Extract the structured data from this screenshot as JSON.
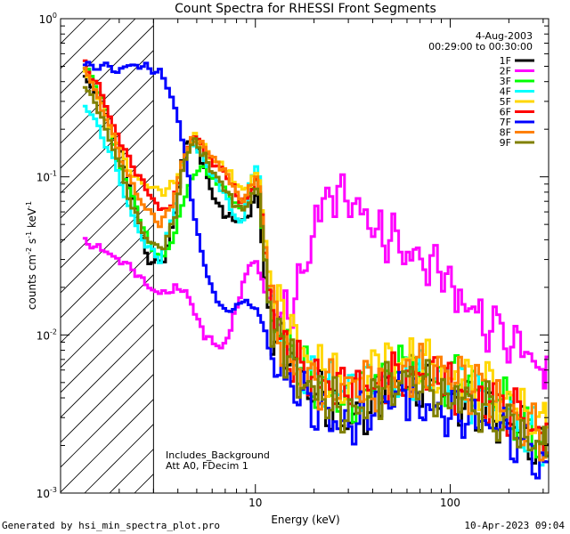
{
  "chart_data": {
    "type": "line",
    "title": "Count Spectra for RHESSI Front Segments",
    "xlabel": "Energy (keV)",
    "ylabel": "counts cm",
    "ylabel_parts": {
      "base": "counts cm",
      "sup1": "-2",
      "mid": " s",
      "sup2": "-1",
      "mid2": " keV",
      "sup3": "-1"
    },
    "xscale": "log",
    "yscale": "log",
    "xlim": [
      1.0,
      320
    ],
    "ylim": [
      0.001,
      1.0
    ],
    "x_ticks": [
      {
        "value": 10,
        "label": "10"
      },
      {
        "value": 100,
        "label": "100"
      }
    ],
    "y_ticks": [
      {
        "value": 1.0,
        "base": "10",
        "exp": "0"
      },
      {
        "value": 0.1,
        "base": "10",
        "exp": "-1"
      },
      {
        "value": 0.01,
        "base": "10",
        "exp": "-2"
      },
      {
        "value": 0.001,
        "base": "10",
        "exp": "-3"
      }
    ],
    "date": "4-Aug-2003",
    "time_range": "00:29:00 to 00:30:00",
    "annotations": [
      "Includes_Background",
      "Att A0, FDecim 1"
    ],
    "shaded_region_xmax": 3,
    "energies": [
      1.3,
      1.6,
      2.0,
      2.4,
      2.8,
      3.3,
      3.8,
      4.3,
      4.8,
      5.4,
      6.0,
      6.8,
      7.6,
      8.5,
      9.5,
      10.3,
      11.0,
      12.0,
      14.0,
      17.0,
      21.0,
      25.0,
      30.0,
      36.0,
      43.0,
      52.0,
      62.0,
      75.0,
      90.0,
      110.0,
      140.0,
      180.0,
      230.0,
      300.0
    ],
    "series": [
      {
        "name": "1F",
        "color": "#000000",
        "values": [
          0.45,
          0.3,
          0.15,
          0.07,
          0.03,
          0.028,
          0.05,
          0.15,
          0.18,
          0.12,
          0.08,
          0.06,
          0.055,
          0.05,
          0.06,
          0.08,
          0.03,
          0.012,
          0.008,
          0.005,
          0.004,
          0.0035,
          0.0032,
          0.0035,
          0.004,
          0.0045,
          0.005,
          0.0048,
          0.0045,
          0.004,
          0.0035,
          0.003,
          0.0025,
          0.0018
        ]
      },
      {
        "name": "2F",
        "color": "#ff00ff",
        "values": [
          0.04,
          0.035,
          0.03,
          0.025,
          0.02,
          0.018,
          0.02,
          0.02,
          0.015,
          0.01,
          0.009,
          0.008,
          0.012,
          0.02,
          0.03,
          0.028,
          0.02,
          0.016,
          0.014,
          0.02,
          0.06,
          0.075,
          0.065,
          0.055,
          0.047,
          0.04,
          0.034,
          0.028,
          0.023,
          0.018,
          0.013,
          0.01,
          0.008,
          0.006
        ]
      },
      {
        "name": "3F",
        "color": "#00ff00",
        "values": [
          0.5,
          0.35,
          0.12,
          0.07,
          0.04,
          0.03,
          0.04,
          0.07,
          0.1,
          0.12,
          0.1,
          0.09,
          0.07,
          0.06,
          0.08,
          0.1,
          0.04,
          0.013,
          0.009,
          0.006,
          0.005,
          0.0045,
          0.004,
          0.0045,
          0.005,
          0.0055,
          0.006,
          0.0058,
          0.0055,
          0.005,
          0.0045,
          0.0038,
          0.003,
          0.002
        ]
      },
      {
        "name": "4F",
        "color": "#00ffff",
        "values": [
          0.3,
          0.2,
          0.1,
          0.05,
          0.035,
          0.03,
          0.06,
          0.14,
          0.17,
          0.13,
          0.1,
          0.08,
          0.06,
          0.05,
          0.1,
          0.13,
          0.045,
          0.014,
          0.009,
          0.006,
          0.005,
          0.0045,
          0.0042,
          0.0045,
          0.005,
          0.0052,
          0.0055,
          0.0052,
          0.005,
          0.0045,
          0.004,
          0.0035,
          0.0028,
          0.002
        ]
      },
      {
        "name": "5F",
        "color": "#ffd700",
        "values": [
          0.5,
          0.3,
          0.15,
          0.1,
          0.09,
          0.08,
          0.09,
          0.12,
          0.18,
          0.16,
          0.13,
          0.12,
          0.1,
          0.08,
          0.09,
          0.11,
          0.05,
          0.02,
          0.012,
          0.008,
          0.006,
          0.0055,
          0.005,
          0.0055,
          0.006,
          0.0065,
          0.0068,
          0.0065,
          0.006,
          0.0055,
          0.005,
          0.0042,
          0.0035,
          0.0025
        ]
      },
      {
        "name": "6F",
        "color": "#ff0000",
        "values": [
          0.55,
          0.35,
          0.17,
          0.11,
          0.08,
          0.06,
          0.07,
          0.13,
          0.19,
          0.15,
          0.12,
          0.11,
          0.09,
          0.07,
          0.08,
          0.1,
          0.045,
          0.014,
          0.009,
          0.006,
          0.005,
          0.0045,
          0.0042,
          0.0045,
          0.005,
          0.0055,
          0.0058,
          0.0055,
          0.005,
          0.0045,
          0.004,
          0.0035,
          0.003,
          0.0022
        ]
      },
      {
        "name": "7F",
        "color": "#0000ff",
        "values": [
          0.5,
          0.5,
          0.48,
          0.52,
          0.5,
          0.45,
          0.3,
          0.15,
          0.06,
          0.03,
          0.02,
          0.015,
          0.014,
          0.016,
          0.015,
          0.014,
          0.012,
          0.008,
          0.005,
          0.004,
          0.0035,
          0.003,
          0.003,
          0.0032,
          0.0035,
          0.0038,
          0.004,
          0.0038,
          0.0035,
          0.0032,
          0.0028,
          0.0025,
          0.002,
          0.0016
        ]
      },
      {
        "name": "8F",
        "color": "#ff8000",
        "values": [
          0.52,
          0.3,
          0.14,
          0.08,
          0.06,
          0.05,
          0.07,
          0.14,
          0.18,
          0.16,
          0.13,
          0.11,
          0.09,
          0.07,
          0.09,
          0.11,
          0.045,
          0.015,
          0.009,
          0.006,
          0.005,
          0.0046,
          0.0043,
          0.0046,
          0.005,
          0.0056,
          0.006,
          0.0058,
          0.0055,
          0.005,
          0.0045,
          0.0038,
          0.003,
          0.0022
        ]
      },
      {
        "name": "9F",
        "color": "#808000",
        "values": [
          0.4,
          0.25,
          0.12,
          0.06,
          0.04,
          0.035,
          0.05,
          0.12,
          0.17,
          0.14,
          0.11,
          0.09,
          0.07,
          0.06,
          0.07,
          0.09,
          0.04,
          0.012,
          0.008,
          0.005,
          0.0042,
          0.0038,
          0.0035,
          0.0038,
          0.0042,
          0.0048,
          0.005,
          0.0048,
          0.0045,
          0.004,
          0.0036,
          0.0031,
          0.0025,
          0.0018
        ]
      }
    ]
  },
  "footer": {
    "generated_by": "Generated by hsi_min_spectra_plot.pro",
    "timestamp": "10-Apr-2023 09:04"
  }
}
